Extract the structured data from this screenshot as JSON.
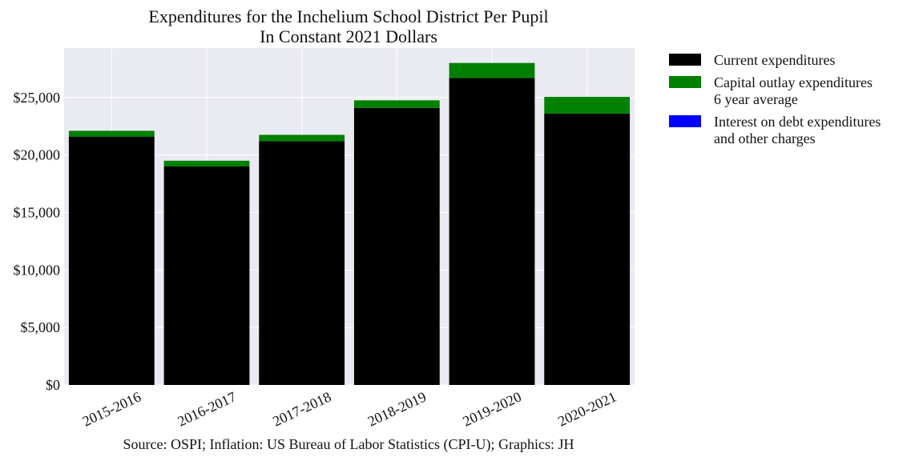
{
  "chart_data": {
    "type": "bar",
    "stacked": true,
    "title": "Expenditures for the Inchelium School District Per Pupil",
    "subtitle": "In Constant 2021 Dollars",
    "categories": [
      "2015-2016",
      "2016-2017",
      "2017-2018",
      "2018-2019",
      "2019-2020",
      "2020-2021"
    ],
    "series": [
      {
        "name": "Current expenditures",
        "color": "#000000",
        "values": [
          21600,
          19000,
          21200,
          24100,
          26700,
          23600
        ]
      },
      {
        "name": "Capital outlay expenditures\n6 year average",
        "color": "#008000",
        "values": [
          500,
          500,
          550,
          650,
          1300,
          1450
        ]
      },
      {
        "name": "Interest on debt expenditures\nand other charges",
        "color": "#0000ff",
        "values": [
          0,
          0,
          0,
          0,
          0,
          0
        ]
      }
    ],
    "ylim": [
      0,
      29300
    ],
    "yticks": [
      0,
      5000,
      10000,
      15000,
      20000,
      25000
    ],
    "ytick_labels": [
      "$0",
      "$5,000",
      "$10,000",
      "$15,000",
      "$20,000",
      "$25,000"
    ],
    "xlabel": "",
    "ylabel": "",
    "grid": true,
    "legend_position": "outside-right",
    "background_color": "#eaeaf2"
  },
  "source": "Source: OSPI; Inflation: US Bureau of Labor Statistics (CPI-U); Graphics: JH"
}
